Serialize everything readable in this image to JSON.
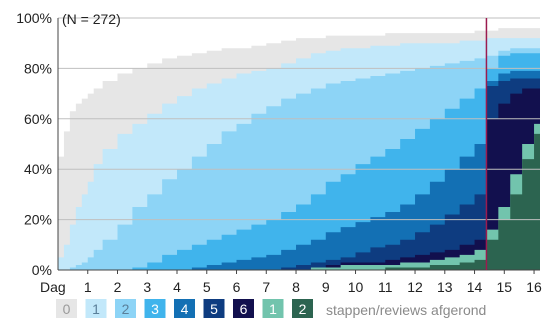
{
  "chart_data": {
    "type": "area",
    "annotation": "(N = 272)",
    "x_tick_prefix": "Dag",
    "x_ticks": [
      1,
      2,
      3,
      4,
      5,
      6,
      7,
      8,
      9,
      10,
      11,
      12,
      13,
      14,
      15,
      16
    ],
    "xlim": [
      0,
      16.2
    ],
    "y_ticks": [
      "0%",
      "20%",
      "40%",
      "60%",
      "80%",
      "100%"
    ],
    "ylim": [
      0,
      100
    ],
    "grid": true,
    "marker_x": 14.4,
    "marker_color": "#9b1b4f",
    "x": [
      0,
      0.2,
      0.4,
      0.6,
      0.8,
      1,
      1.2,
      1.5,
      2,
      2.5,
      3,
      3.5,
      4,
      4.5,
      5,
      5.5,
      6,
      6.5,
      7,
      7.5,
      8,
      8.5,
      9,
      9.5,
      10,
      10.5,
      11,
      11.5,
      12,
      12.5,
      13,
      13.5,
      14,
      14.4,
      14.8,
      15.2,
      15.6,
      16,
      16.2
    ],
    "series": [
      {
        "label": "0",
        "color": "#e6e6e6",
        "values": [
          45,
          55,
          63,
          66,
          68,
          70,
          72,
          75,
          78,
          80,
          82,
          84,
          85,
          86,
          87,
          88,
          88,
          89,
          90,
          91,
          92,
          92,
          93,
          93,
          93,
          93,
          94,
          94,
          94,
          94,
          94,
          94,
          95,
          95,
          96,
          96,
          96,
          96,
          96
        ]
      },
      {
        "label": "1",
        "color": "#c2e8fa",
        "values": [
          5,
          10,
          18,
          25,
          30,
          35,
          42,
          48,
          54,
          58,
          62,
          66,
          69,
          72,
          74,
          76,
          78,
          79,
          80,
          82,
          84,
          86,
          87,
          88,
          88,
          89,
          89,
          90,
          90,
          90,
          90,
          91,
          91,
          92,
          92,
          92,
          92,
          92,
          92
        ]
      },
      {
        "label": "2",
        "color": "#8dd4f6",
        "values": [
          0,
          0,
          1,
          2,
          3,
          5,
          8,
          12,
          18,
          25,
          30,
          36,
          40,
          45,
          50,
          55,
          58,
          62,
          65,
          68,
          70,
          72,
          74,
          75,
          76,
          77,
          78,
          79,
          80,
          81,
          82,
          83,
          84,
          85,
          87,
          88,
          88,
          88,
          88
        ]
      },
      {
        "label": "3",
        "color": "#40b4ec",
        "values": [
          0,
          0,
          0,
          0,
          0,
          0,
          0,
          0,
          0,
          1,
          3,
          6,
          8,
          10,
          12,
          14,
          16,
          18,
          20,
          23,
          26,
          30,
          35,
          38,
          42,
          45,
          48,
          52,
          56,
          60,
          64,
          68,
          72,
          80,
          85,
          86,
          86,
          86,
          86
        ]
      },
      {
        "label": "4",
        "color": "#1370b4",
        "values": [
          0,
          0,
          0,
          0,
          0,
          0,
          0,
          0,
          0,
          0,
          0,
          0,
          0,
          1,
          2,
          3,
          4,
          5,
          6,
          8,
          10,
          12,
          15,
          17,
          19,
          21,
          23,
          26,
          30,
          35,
          40,
          45,
          50,
          75,
          78,
          79,
          79,
          79,
          79
        ]
      },
      {
        "label": "5",
        "color": "#0e3c80",
        "values": [
          0,
          0,
          0,
          0,
          0,
          0,
          0,
          0,
          0,
          0,
          0,
          0,
          0,
          0,
          0,
          0,
          0,
          0,
          0,
          1,
          2,
          3,
          4,
          5,
          7,
          9,
          10,
          12,
          15,
          18,
          22,
          26,
          30,
          73,
          75,
          76,
          76,
          76,
          76
        ]
      },
      {
        "label": "6",
        "color": "#12104e",
        "values": [
          0,
          0,
          0,
          0,
          0,
          0,
          0,
          0,
          0,
          0,
          0,
          0,
          0,
          0,
          0,
          0,
          0,
          0,
          0,
          0,
          0,
          1,
          2,
          3,
          3,
          3,
          4,
          5,
          6,
          7,
          8,
          10,
          12,
          60,
          66,
          70,
          72,
          72,
          72
        ]
      },
      {
        "label": "1",
        "color": "#72c4ad",
        "values": [
          0,
          0,
          0,
          0,
          0,
          0,
          0,
          0,
          0,
          0,
          0,
          0,
          0,
          0,
          0,
          0,
          0,
          0,
          0,
          0,
          0,
          1,
          1,
          2,
          2,
          2,
          2,
          3,
          3,
          4,
          5,
          6,
          8,
          16,
          25,
          38,
          50,
          58,
          62
        ]
      },
      {
        "label": "2",
        "color": "#2c6450",
        "values": [
          0,
          0,
          0,
          0,
          0,
          0,
          0,
          0,
          0,
          0,
          0,
          0,
          0,
          0,
          0,
          0,
          0,
          0,
          0,
          0,
          0,
          0,
          0,
          0,
          0,
          0,
          1,
          1,
          1,
          2,
          2,
          3,
          4,
          12,
          20,
          30,
          44,
          54,
          58
        ]
      }
    ],
    "legend_suffix": "stappen/reviews afgerond"
  }
}
